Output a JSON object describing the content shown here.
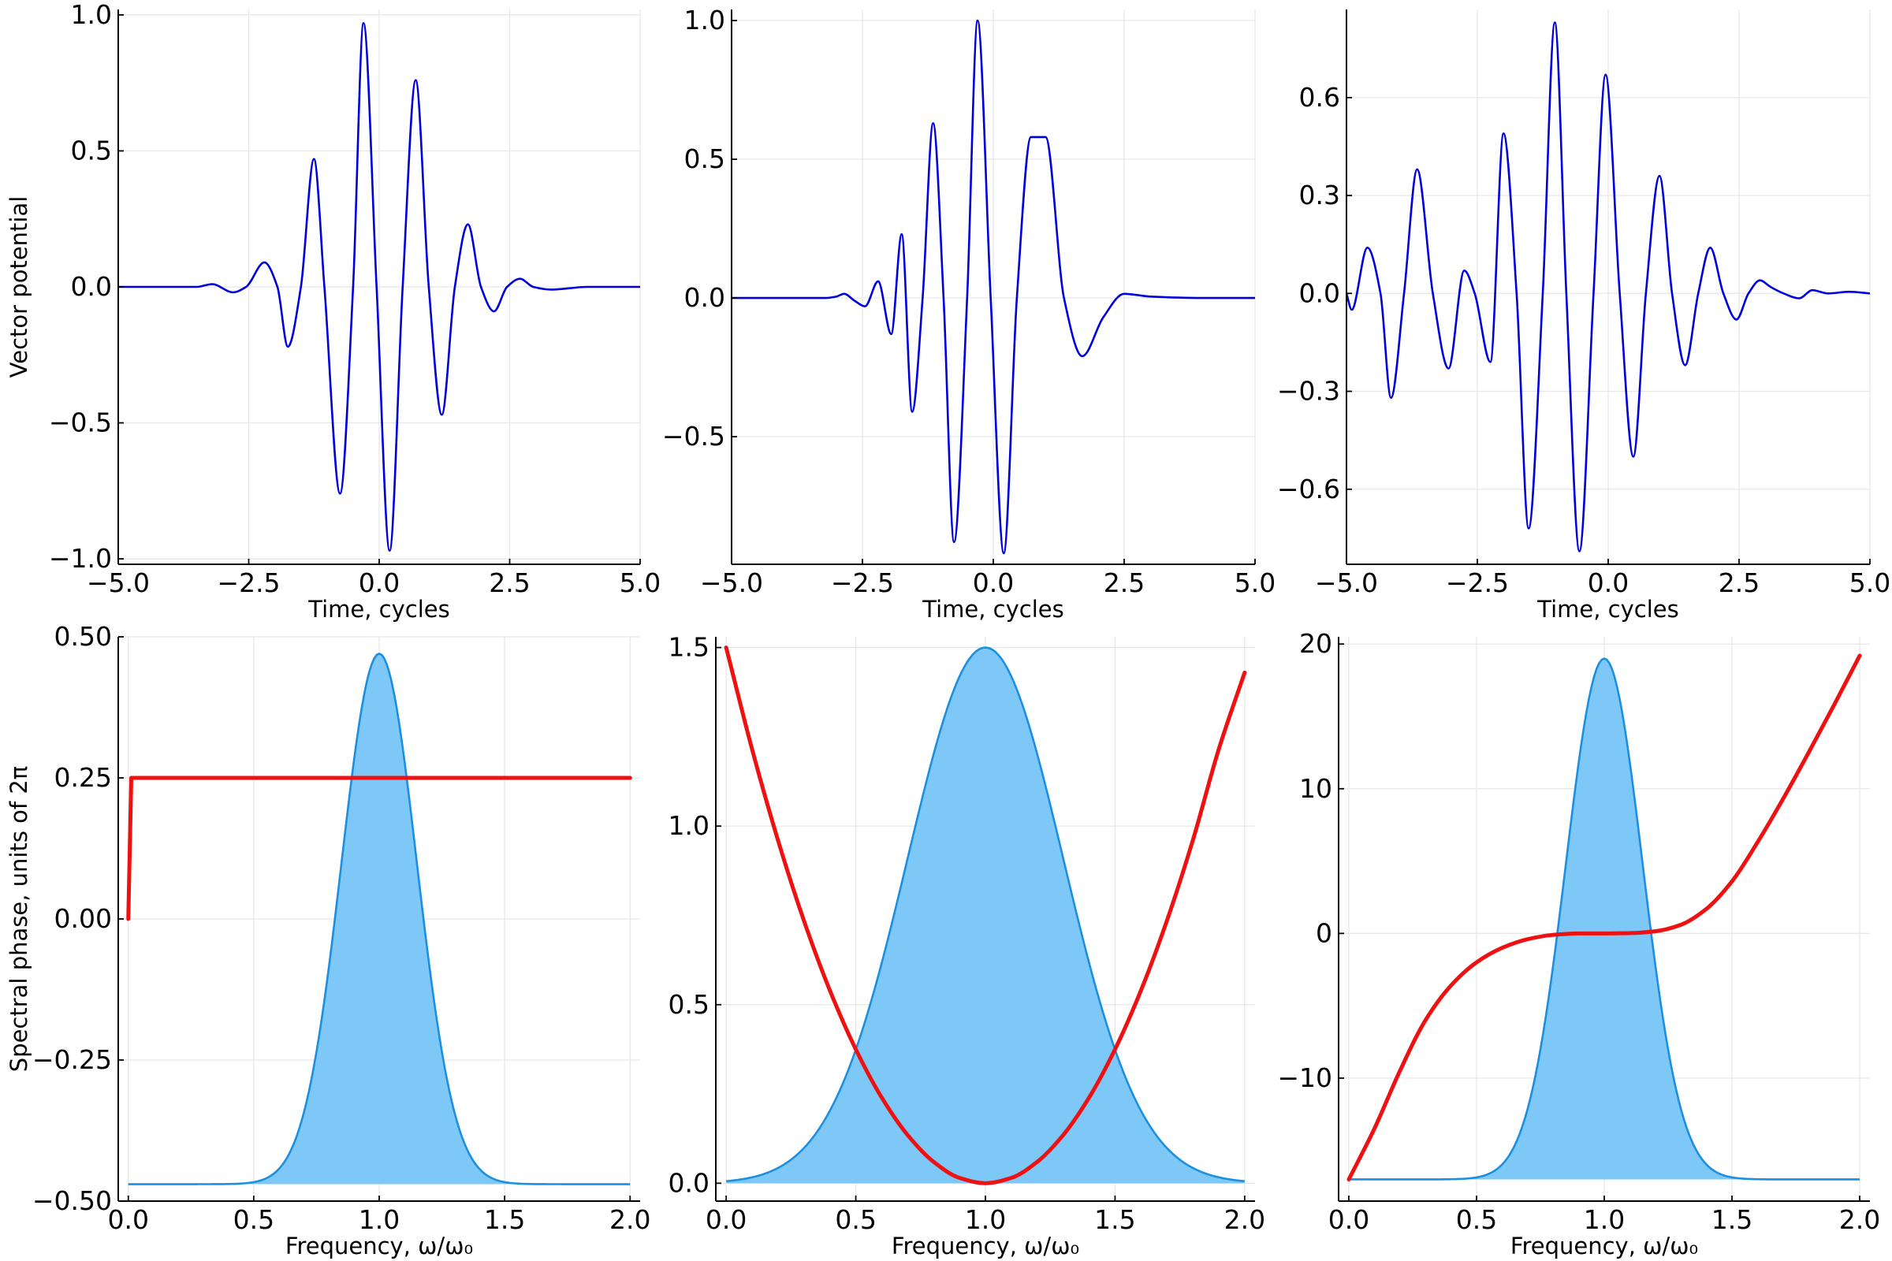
{
  "colors": {
    "vector_potential": "#0000dd",
    "spectrum_line": "#1c8fe0",
    "spectrum_fill": "#7ec8f8",
    "phase": "#ee1111",
    "grid": "#e6e6e6",
    "axes": "#000000"
  },
  "chart_data": [
    {
      "id": "top-left",
      "type": "line",
      "xlabel": "Time, cycles",
      "ylabel": "Vector potential",
      "xlim": [
        -5,
        5
      ],
      "ylim": [
        -1.02,
        1.02
      ],
      "xticks": [
        -5,
        -2.5,
        0,
        2.5,
        5
      ],
      "xtick_labels": [
        "−5.0",
        "−2.5",
        "0.0",
        "2.5",
        "5.0"
      ],
      "yticks": [
        -1,
        -0.5,
        0,
        0.5,
        1
      ],
      "ytick_labels": [
        "−1.0",
        "−0.5",
        "0.0",
        "0.5",
        "1.0"
      ],
      "grid": true,
      "series": [
        {
          "x": [
            -5.0,
            -4.0,
            -3.5,
            -3.2,
            -2.8,
            -2.55,
            -2.2,
            -1.95,
            -1.75,
            -1.5,
            -1.25,
            -1.05,
            -0.75,
            -0.5,
            -0.3,
            -0.05,
            0.2,
            0.45,
            0.7,
            0.95,
            1.2,
            1.45,
            1.7,
            1.95,
            2.2,
            2.45,
            2.7,
            2.95,
            3.3,
            4.0,
            5.0
          ],
          "y": [
            0.0,
            0.0,
            0.0,
            0.01,
            -0.02,
            0.0,
            0.09,
            0.0,
            -0.22,
            0.0,
            0.47,
            0.0,
            -0.76,
            0.0,
            0.97,
            0.0,
            -0.97,
            0.0,
            0.76,
            0.0,
            -0.47,
            0.0,
            0.23,
            0.0,
            -0.09,
            0.0,
            0.03,
            0.0,
            -0.01,
            0.0,
            0.0
          ]
        }
      ]
    },
    {
      "id": "top-middle",
      "type": "line",
      "xlabel": "Time, cycles",
      "ylabel": "",
      "xlim": [
        -5,
        5
      ],
      "ylim": [
        -0.96,
        1.04
      ],
      "xticks": [
        -5,
        -2.5,
        0,
        2.5,
        5
      ],
      "xtick_labels": [
        "−5.0",
        "−2.5",
        "0.0",
        "2.5",
        "5.0"
      ],
      "yticks": [
        -0.5,
        0,
        0.5,
        1
      ],
      "ytick_labels": [
        "−0.5",
        "0.0",
        "0.5",
        "1.0"
      ],
      "grid": true,
      "series": [
        {
          "x": [
            -5.0,
            -3.5,
            -3.2,
            -3.0,
            -2.85,
            -2.65,
            -2.45,
            -2.2,
            -1.95,
            -1.75,
            -1.55,
            -1.35,
            -1.15,
            -0.95,
            -0.75,
            -0.5,
            -0.3,
            -0.05,
            0.2,
            0.45,
            0.72,
            1.0,
            1.35,
            1.7,
            2.1,
            2.5,
            3.0,
            4.0,
            5.0
          ],
          "y": [
            0.0,
            0.0,
            0.0,
            0.005,
            0.015,
            -0.01,
            -0.03,
            0.06,
            -0.13,
            0.23,
            -0.41,
            0.0,
            0.63,
            0.0,
            -0.88,
            0.0,
            1.0,
            0.0,
            -0.92,
            0.0,
            0.58,
            0.58,
            0.0,
            -0.21,
            -0.07,
            0.015,
            0.005,
            0.0,
            0.0
          ]
        }
      ]
    },
    {
      "id": "top-right",
      "type": "line",
      "xlabel": "Time, cycles",
      "ylabel": "",
      "xlim": [
        -5,
        5
      ],
      "ylim": [
        -0.83,
        0.87
      ],
      "xticks": [
        -5,
        -2.5,
        0,
        2.5,
        5
      ],
      "xtick_labels": [
        "−5.0",
        "−2.5",
        "0.0",
        "2.5",
        "5.0"
      ],
      "yticks": [
        -0.6,
        -0.3,
        0,
        0.3,
        0.6
      ],
      "ytick_labels": [
        "−0.6",
        "−0.3",
        "0.0",
        "0.3",
        "0.6"
      ],
      "grid": true,
      "series": [
        {
          "x": [
            -5.0,
            -4.9,
            -4.6,
            -4.35,
            -4.15,
            -3.9,
            -3.65,
            -3.35,
            -3.05,
            -2.75,
            -2.55,
            -2.25,
            -2.0,
            -1.75,
            -1.52,
            -1.25,
            -1.02,
            -0.8,
            -0.55,
            -0.28,
            -0.05,
            0.22,
            0.48,
            0.72,
            0.98,
            1.22,
            1.47,
            1.72,
            1.95,
            2.2,
            2.45,
            2.68,
            2.9,
            3.1,
            3.35,
            3.65,
            3.9,
            4.2,
            4.6,
            5.0
          ],
          "y": [
            0.0,
            -0.05,
            0.14,
            0.0,
            -0.32,
            0.0,
            0.38,
            0.0,
            -0.23,
            0.07,
            0.0,
            -0.21,
            0.49,
            0.0,
            -0.72,
            0.0,
            0.83,
            0.0,
            -0.79,
            0.0,
            0.67,
            0.0,
            -0.5,
            0.0,
            0.36,
            0.0,
            -0.22,
            0.0,
            0.14,
            0.0,
            -0.08,
            0.0,
            0.04,
            0.02,
            0.0,
            -0.015,
            0.01,
            0.0,
            0.005,
            0.0
          ]
        }
      ]
    },
    {
      "id": "bottom-left",
      "type": "area",
      "xlabel": "Frequency, ω/ω₀",
      "ylabel": "Spectral phase, units of 2π",
      "xlim": [
        -0.04,
        2.04
      ],
      "ylim": [
        -0.5,
        0.5
      ],
      "xticks": [
        0,
        0.5,
        1,
        1.5,
        2
      ],
      "xtick_labels": [
        "0.0",
        "0.5",
        "1.0",
        "1.5",
        "2.0"
      ],
      "yticks": [
        -0.5,
        -0.25,
        0,
        0.25,
        0.5
      ],
      "ytick_labels": [
        "−0.50",
        "−0.25",
        "0.00",
        "0.25",
        "0.50"
      ],
      "grid": true,
      "spectrum": {
        "center": 1.0,
        "sigma": 0.15,
        "baseline": -0.47,
        "peak": 0.47
      },
      "phase": {
        "x": [
          0.0,
          0.012,
          0.025,
          0.5,
          1.0,
          1.5,
          2.0
        ],
        "y": [
          0.0,
          0.25,
          0.25,
          0.25,
          0.25,
          0.25,
          0.25
        ]
      }
    },
    {
      "id": "bottom-middle",
      "type": "area",
      "xlabel": "Frequency, ω/ω₀",
      "ylabel": "",
      "xlim": [
        -0.04,
        2.04
      ],
      "ylim": [
        -0.05,
        1.53
      ],
      "xticks": [
        0,
        0.5,
        1,
        1.5,
        2
      ],
      "xtick_labels": [
        "0.0",
        "0.5",
        "1.0",
        "1.5",
        "2.0"
      ],
      "yticks": [
        0,
        0.5,
        1,
        1.5
      ],
      "ytick_labels": [
        "0.0",
        "0.5",
        "1.0",
        "1.5"
      ],
      "grid": true,
      "spectrum": {
        "center": 1.0,
        "sigma": 0.3,
        "baseline": 0.0,
        "peak": 1.5
      },
      "phase": {
        "x": [
          0.0,
          0.1,
          0.2,
          0.3,
          0.4,
          0.5,
          0.6,
          0.7,
          0.8,
          0.9,
          1.0,
          1.1,
          1.2,
          1.3,
          1.4,
          1.5,
          1.6,
          1.7,
          1.8,
          1.9,
          2.0
        ],
        "y": [
          1.5,
          1.215,
          0.96,
          0.735,
          0.54,
          0.375,
          0.24,
          0.135,
          0.06,
          0.015,
          0.0,
          0.015,
          0.06,
          0.135,
          0.24,
          0.375,
          0.54,
          0.735,
          0.96,
          1.215,
          1.43
        ]
      }
    },
    {
      "id": "bottom-right",
      "type": "area",
      "xlabel": "Frequency, ω/ω₀",
      "ylabel": "",
      "xlim": [
        -0.04,
        2.04
      ],
      "ylim": [
        -18.5,
        20.5
      ],
      "xticks": [
        0,
        0.5,
        1,
        1.5,
        2
      ],
      "xtick_labels": [
        "0.0",
        "0.5",
        "1.0",
        "1.5",
        "2.0"
      ],
      "yticks": [
        -10,
        0,
        10,
        20
      ],
      "ytick_labels": [
        "−10",
        "0",
        "10",
        "20"
      ],
      "grid": true,
      "spectrum": {
        "center": 1.0,
        "sigma": 0.15,
        "baseline": -17,
        "peak": 19
      },
      "phase": {
        "x": [
          0.0,
          0.1,
          0.2,
          0.3,
          0.4,
          0.5,
          0.6,
          0.7,
          0.8,
          0.9,
          1.0,
          1.1,
          1.2,
          1.3,
          1.4,
          1.5,
          1.6,
          1.7,
          1.8,
          1.9,
          2.0
        ],
        "y": [
          -17,
          -13.5,
          -9.5,
          -6.0,
          -3.6,
          -2.0,
          -1.0,
          -0.4,
          -0.1,
          0.0,
          0.0,
          0.02,
          0.15,
          0.6,
          1.7,
          3.6,
          6.3,
          9.3,
          12.5,
          15.8,
          19.2
        ]
      }
    }
  ]
}
